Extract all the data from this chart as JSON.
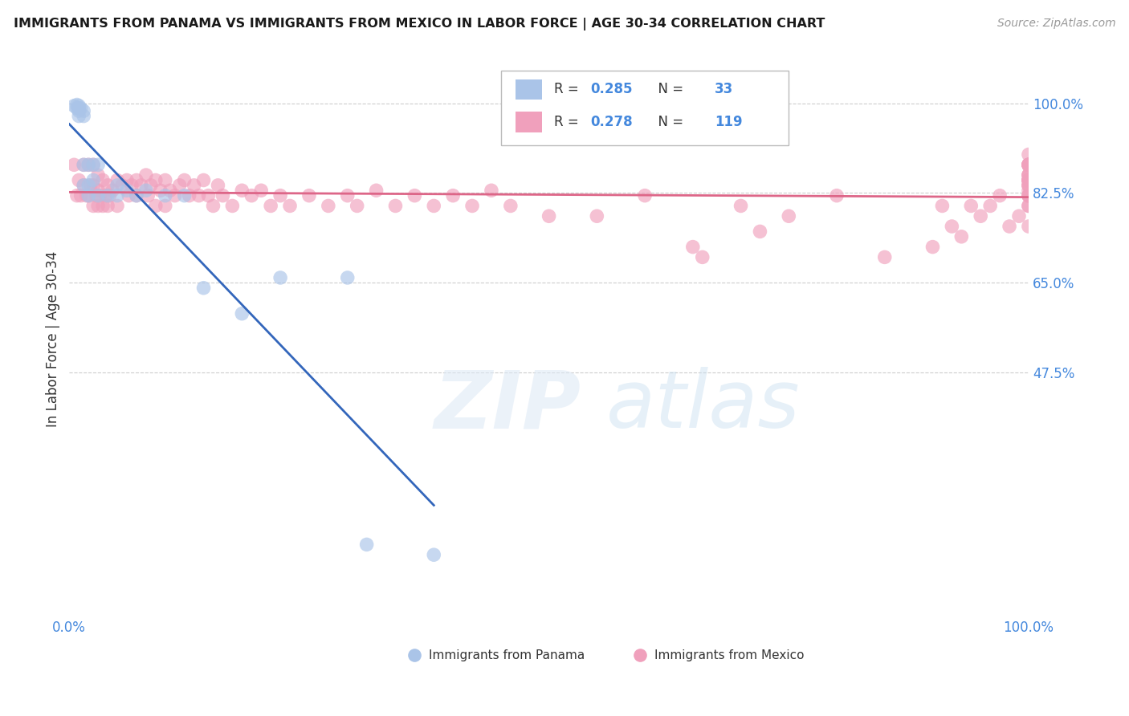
{
  "title": "IMMIGRANTS FROM PANAMA VS IMMIGRANTS FROM MEXICO IN LABOR FORCE | AGE 30-34 CORRELATION CHART",
  "source": "Source: ZipAtlas.com",
  "ylabel": "In Labor Force | Age 30-34",
  "xlim": [
    0.0,
    1.0
  ],
  "ylim": [
    0.0,
    1.08
  ],
  "y_tick_positions": [
    1.0,
    0.825,
    0.65,
    0.475
  ],
  "y_tick_labels": [
    "100.0%",
    "82.5%",
    "65.0%",
    "47.5%"
  ],
  "x_tick_labels": [
    "0.0%",
    "100.0%"
  ],
  "grid_color": "#cccccc",
  "background_color": "#ffffff",
  "panama_color": "#aac4e8",
  "mexico_color": "#f0a0bc",
  "panama_line_color": "#3366bb",
  "mexico_line_color": "#dd6688",
  "tick_color": "#4488dd",
  "legend_panama_R": "0.285",
  "legend_panama_N": "33",
  "legend_mexico_R": "0.278",
  "legend_mexico_N": "119",
  "panama_label": "Immigrants from Panama",
  "mexico_label": "Immigrants from Mexico",
  "panama_x": [
    0.005,
    0.008,
    0.008,
    0.01,
    0.01,
    0.01,
    0.01,
    0.012,
    0.015,
    0.015,
    0.015,
    0.015,
    0.02,
    0.02,
    0.02,
    0.025,
    0.025,
    0.03,
    0.03,
    0.04,
    0.05,
    0.05,
    0.06,
    0.07,
    0.08,
    0.1,
    0.12,
    0.14,
    0.18,
    0.22,
    0.29,
    0.31,
    0.38
  ],
  "panama_y": [
    0.995,
    0.997,
    0.99,
    0.995,
    0.99,
    0.985,
    0.975,
    0.99,
    0.985,
    0.975,
    0.88,
    0.84,
    0.88,
    0.84,
    0.82,
    0.88,
    0.85,
    0.88,
    0.82,
    0.82,
    0.84,
    0.82,
    0.83,
    0.82,
    0.83,
    0.82,
    0.82,
    0.64,
    0.59,
    0.66,
    0.66,
    0.14,
    0.12
  ],
  "mexico_x": [
    0.005,
    0.008,
    0.01,
    0.012,
    0.015,
    0.015,
    0.018,
    0.02,
    0.02,
    0.022,
    0.025,
    0.025,
    0.025,
    0.028,
    0.03,
    0.03,
    0.03,
    0.032,
    0.035,
    0.035,
    0.038,
    0.04,
    0.04,
    0.042,
    0.045,
    0.05,
    0.05,
    0.055,
    0.06,
    0.062,
    0.065,
    0.07,
    0.07,
    0.075,
    0.08,
    0.082,
    0.085,
    0.09,
    0.09,
    0.095,
    0.1,
    0.1,
    0.105,
    0.11,
    0.115,
    0.12,
    0.125,
    0.13,
    0.135,
    0.14,
    0.145,
    0.15,
    0.155,
    0.16,
    0.17,
    0.18,
    0.19,
    0.2,
    0.21,
    0.22,
    0.23,
    0.25,
    0.27,
    0.29,
    0.3,
    0.32,
    0.34,
    0.36,
    0.38,
    0.4,
    0.42,
    0.44,
    0.46,
    0.5,
    0.55,
    0.6,
    0.65,
    0.66,
    0.7,
    0.72,
    0.75,
    0.8,
    0.85,
    0.9,
    0.91,
    0.92,
    0.93,
    0.94,
    0.95,
    0.96,
    0.97,
    0.98,
    0.99,
    1.0,
    1.0,
    1.0,
    1.0,
    1.0,
    1.0,
    1.0,
    1.0,
    1.0,
    1.0,
    1.0,
    1.0,
    1.0,
    1.0,
    1.0,
    1.0,
    1.0,
    1.0,
    1.0,
    1.0,
    1.0,
    1.0,
    1.0,
    1.0,
    1.0,
    1.0
  ],
  "mexico_y": [
    0.88,
    0.82,
    0.85,
    0.82,
    0.88,
    0.84,
    0.82,
    0.88,
    0.82,
    0.84,
    0.88,
    0.84,
    0.8,
    0.82,
    0.86,
    0.83,
    0.8,
    0.82,
    0.85,
    0.8,
    0.82,
    0.84,
    0.8,
    0.82,
    0.83,
    0.85,
    0.8,
    0.84,
    0.85,
    0.82,
    0.84,
    0.85,
    0.82,
    0.84,
    0.86,
    0.82,
    0.84,
    0.85,
    0.8,
    0.83,
    0.85,
    0.8,
    0.83,
    0.82,
    0.84,
    0.85,
    0.82,
    0.84,
    0.82,
    0.85,
    0.82,
    0.8,
    0.84,
    0.82,
    0.8,
    0.83,
    0.82,
    0.83,
    0.8,
    0.82,
    0.8,
    0.82,
    0.8,
    0.82,
    0.8,
    0.83,
    0.8,
    0.82,
    0.8,
    0.82,
    0.8,
    0.83,
    0.8,
    0.78,
    0.78,
    0.82,
    0.72,
    0.7,
    0.8,
    0.75,
    0.78,
    0.82,
    0.7,
    0.72,
    0.8,
    0.76,
    0.74,
    0.8,
    0.78,
    0.8,
    0.82,
    0.76,
    0.78,
    0.8,
    0.83,
    0.85,
    0.88,
    0.82,
    0.76,
    0.8,
    0.85,
    0.88,
    0.82,
    0.85,
    0.86,
    0.88,
    0.84,
    0.86,
    0.88,
    0.82,
    0.85,
    0.88,
    0.9,
    0.84,
    0.88,
    0.85,
    0.88,
    0.84,
    0.86
  ]
}
